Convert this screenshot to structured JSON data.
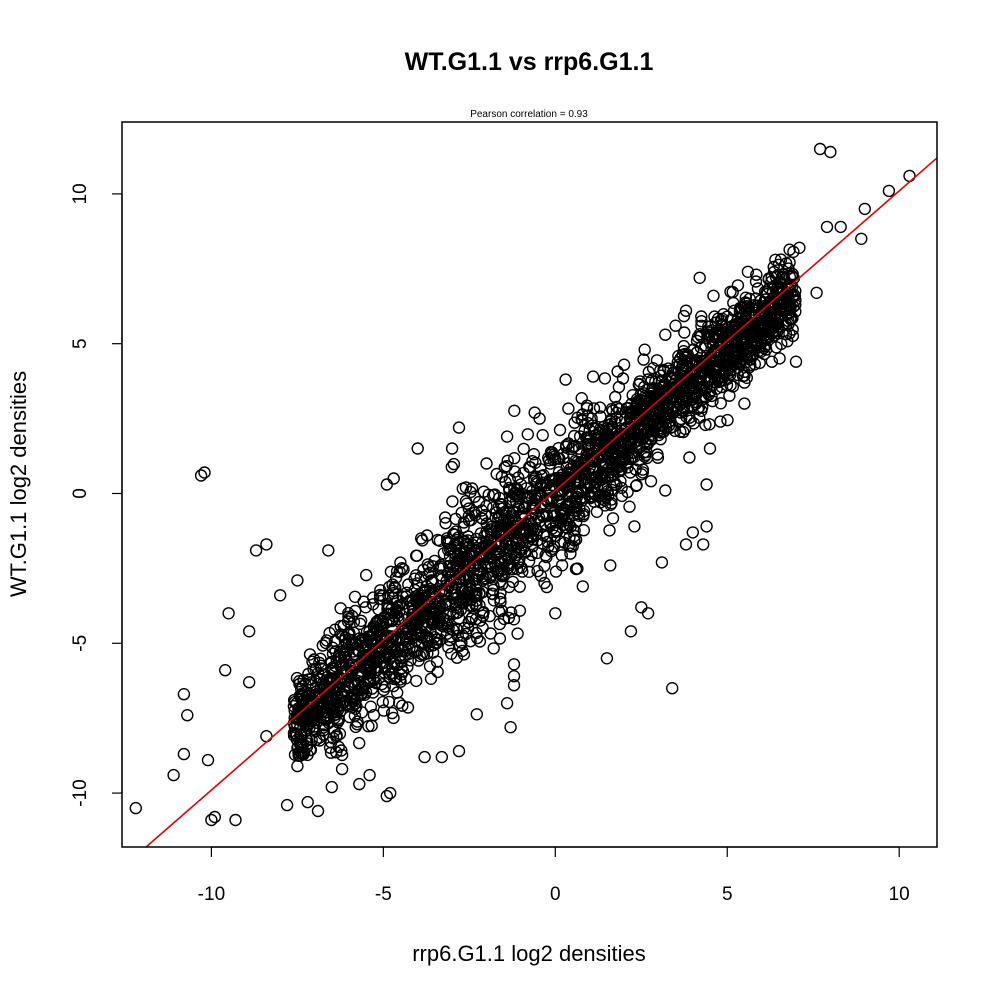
{
  "chart_data": {
    "type": "scatter",
    "title": "WT.G1.1 vs rrp6.G1.1",
    "subtitle": "Pearson correlation =  0.93",
    "xlabel": "rrp6.G1.1 log2 densities",
    "ylabel": "WT.G1.1 log2 densities",
    "xlim": [
      -12.6,
      11.1
    ],
    "ylim": [
      -11.8,
      12.4
    ],
    "x_ticks": [
      -10,
      -5,
      0,
      5,
      10
    ],
    "y_ticks": [
      -10,
      -5,
      0,
      5,
      10
    ],
    "x_tick_labels": [
      "-10",
      "-5",
      "0",
      "5",
      "10"
    ],
    "y_tick_labels": [
      "-10",
      "-5",
      "0",
      "5",
      "10"
    ],
    "grid": false,
    "point_color": "#000000",
    "fit_line": {
      "color": "#e00000",
      "slope": 1.0,
      "intercept": 0.1
    },
    "points": [
      {
        "x": 7.7,
        "y": 11.5
      },
      {
        "x": 8.0,
        "y": 11.4
      },
      {
        "x": 10.3,
        "y": 10.6
      },
      {
        "x": 9.7,
        "y": 10.1
      },
      {
        "x": 9.0,
        "y": 9.5
      },
      {
        "x": 8.9,
        "y": 8.5
      },
      {
        "x": 8.3,
        "y": 8.9
      },
      {
        "x": 7.9,
        "y": 8.9
      },
      {
        "x": 7.6,
        "y": 6.7
      },
      {
        "x": 7.0,
        "y": 4.4
      },
      {
        "x": 4.2,
        "y": 7.2
      },
      {
        "x": 3.8,
        "y": 6.1
      },
      {
        "x": 3.2,
        "y": 5.3
      },
      {
        "x": 4.5,
        "y": 3.4
      },
      {
        "x": 5.5,
        "y": 3.7
      },
      {
        "x": 5.3,
        "y": 4.2
      },
      {
        "x": 4.5,
        "y": 1.5
      },
      {
        "x": 4.4,
        "y": 0.3
      },
      {
        "x": 4.4,
        "y": -1.1
      },
      {
        "x": 4.0,
        "y": -1.3
      },
      {
        "x": 3.8,
        "y": -1.7
      },
      {
        "x": 4.3,
        "y": -1.7
      },
      {
        "x": 3.1,
        "y": -2.3
      },
      {
        "x": 2.7,
        "y": -4.0
      },
      {
        "x": 2.5,
        "y": -3.8
      },
      {
        "x": 2.2,
        "y": -4.6
      },
      {
        "x": 3.4,
        "y": -6.5
      },
      {
        "x": 1.5,
        "y": -5.5
      },
      {
        "x": -10.3,
        "y": 0.6
      },
      {
        "x": -10.2,
        "y": 0.7
      },
      {
        "x": -8.7,
        "y": -1.9
      },
      {
        "x": -8.4,
        "y": -1.7
      },
      {
        "x": -4.9,
        "y": 0.3
      },
      {
        "x": -4.7,
        "y": 0.5
      },
      {
        "x": -4.0,
        "y": 1.5
      },
      {
        "x": -3.0,
        "y": 1.5
      },
      {
        "x": -2.8,
        "y": 2.2
      },
      {
        "x": -9.5,
        "y": -4.0
      },
      {
        "x": -8.9,
        "y": -4.6
      },
      {
        "x": -8.0,
        "y": -3.4
      },
      {
        "x": -7.5,
        "y": -2.9
      },
      {
        "x": -6.6,
        "y": -1.9
      },
      {
        "x": -10.8,
        "y": -6.7
      },
      {
        "x": -10.7,
        "y": -7.4
      },
      {
        "x": -11.1,
        "y": -9.4
      },
      {
        "x": -12.2,
        "y": -10.5
      },
      {
        "x": -10.0,
        "y": -10.9
      },
      {
        "x": -9.3,
        "y": -10.9
      },
      {
        "x": -9.9,
        "y": -10.8
      },
      {
        "x": -7.8,
        "y": -10.4
      },
      {
        "x": -7.2,
        "y": -10.3
      },
      {
        "x": -6.9,
        "y": -10.6
      },
      {
        "x": -4.9,
        "y": -10.1
      },
      {
        "x": -4.8,
        "y": -10.0
      },
      {
        "x": -5.7,
        "y": -9.7
      },
      {
        "x": -6.5,
        "y": -9.8
      },
      {
        "x": -10.8,
        "y": -8.7
      },
      {
        "x": -10.1,
        "y": -8.9
      },
      {
        "x": -9.6,
        "y": -5.9
      },
      {
        "x": -8.9,
        "y": -6.3
      },
      {
        "x": -1.2,
        "y": -6.4
      },
      {
        "x": -1.2,
        "y": -6.1
      },
      {
        "x": -1.2,
        "y": -5.7
      },
      {
        "x": -7.5,
        "y": -9.1
      },
      {
        "x": -6.2,
        "y": -9.2
      },
      {
        "x": -5.4,
        "y": -9.4
      },
      {
        "x": -3.8,
        "y": -8.8
      },
      {
        "x": -3.3,
        "y": -8.8
      },
      {
        "x": -2.8,
        "y": -8.6
      },
      {
        "x": -1.3,
        "y": -7.8
      },
      {
        "x": -1.4,
        "y": -7.0
      },
      {
        "x": -8.4,
        "y": -8.1
      },
      {
        "x": -7.6,
        "y": -7.1
      },
      {
        "x": -6.9,
        "y": -6.0
      },
      {
        "x": -6.1,
        "y": -4.8
      },
      {
        "x": -5.3,
        "y": -3.7
      },
      {
        "x": -4.6,
        "y": -2.6
      },
      {
        "x": -3.9,
        "y": -1.5
      },
      {
        "x": -3.2,
        "y": -0.8
      },
      {
        "x": -2.6,
        "y": 0.2
      },
      {
        "x": -2.0,
        "y": 1.0
      },
      {
        "x": -1.4,
        "y": 1.9
      },
      {
        "x": -0.6,
        "y": 2.7
      },
      {
        "x": 0.3,
        "y": 3.8
      },
      {
        "x": 1.1,
        "y": 3.9
      },
      {
        "x": 2.0,
        "y": 4.3
      },
      {
        "x": 2.6,
        "y": 4.8
      },
      {
        "x": 3.5,
        "y": 5.6
      },
      {
        "x": 4.6,
        "y": 6.6
      },
      {
        "x": 5.6,
        "y": 7.4
      },
      {
        "x": 6.4,
        "y": 7.8
      },
      {
        "x": 7.1,
        "y": 8.2
      },
      {
        "x": -1.2,
        "y": -4.2
      },
      {
        "x": 0.0,
        "y": -4.0
      },
      {
        "x": 0.8,
        "y": -3.1
      },
      {
        "x": 1.6,
        "y": -2.4
      },
      {
        "x": 2.3,
        "y": -1.1
      },
      {
        "x": 3.2,
        "y": 0.1
      },
      {
        "x": 3.9,
        "y": 1.2
      },
      {
        "x": 4.8,
        "y": 2.4
      },
      {
        "x": 5.5,
        "y": 3.0
      },
      {
        "x": 6.3,
        "y": 4.4
      }
    ]
  }
}
